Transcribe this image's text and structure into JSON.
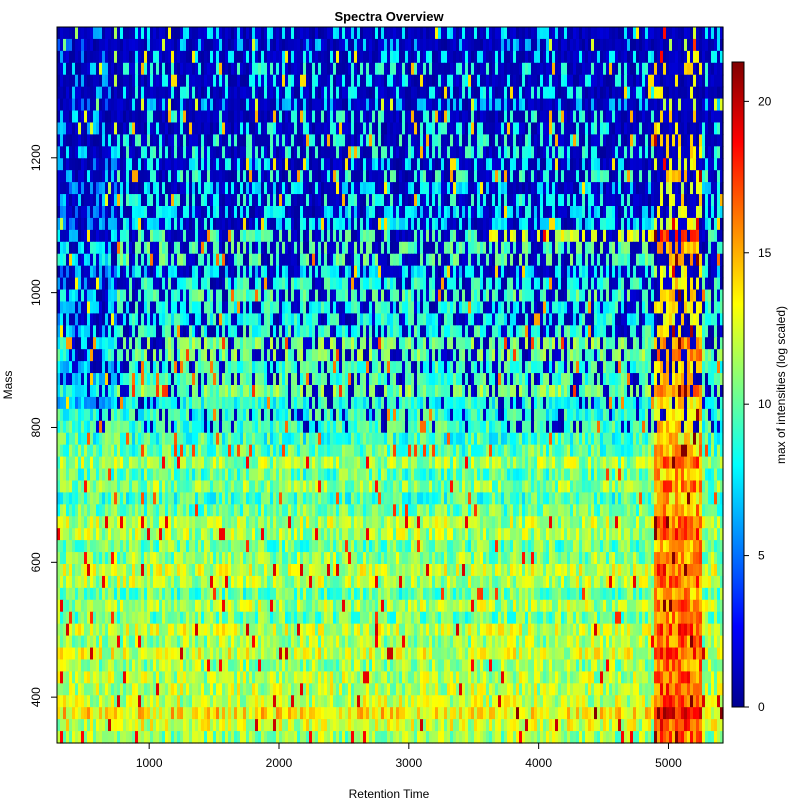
{
  "chart_data": {
    "type": "heatmap",
    "title": "Spectra Overview",
    "xlabel": "Retention Time",
    "ylabel": "Mass",
    "colorbar_label": "max of intensities (log scaled)",
    "xlim": [
      290,
      5420
    ],
    "ylim": [
      332,
      1394
    ],
    "x_ticks": [
      1000,
      2000,
      3000,
      4000,
      5000
    ],
    "y_ticks": [
      400,
      600,
      800,
      1000,
      1200
    ],
    "color_range": [
      0,
      21.3
    ],
    "colorbar_ticks": [
      0,
      5,
      10,
      15,
      20
    ],
    "colormap": [
      "#00008f",
      "#0000ff",
      "#0080ff",
      "#00ffff",
      "#80ff80",
      "#ffff00",
      "#ff8000",
      "#ff0000",
      "#800000"
    ],
    "grid": false,
    "legend_position": "right"
  }
}
